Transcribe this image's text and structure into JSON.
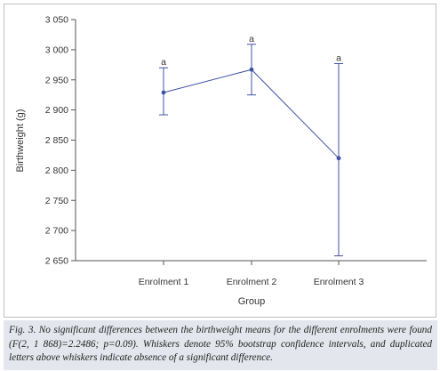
{
  "chart_data": {
    "type": "line",
    "categories": [
      "Enrolment 1",
      "Enrolment 2",
      "Enrolment 3"
    ],
    "series": [
      {
        "values": [
          2929,
          2967,
          2820
        ],
        "ci_lower": [
          2892,
          2925,
          2658
        ],
        "ci_upper": [
          2970,
          3009,
          2977
        ]
      }
    ],
    "letters": [
      "a",
      "a",
      "a"
    ],
    "xlabel": "Group",
    "ylabel": "Birthweight (g)",
    "ylim": [
      2650,
      3050
    ],
    "yticks": [
      2650,
      2700,
      2750,
      2800,
      2850,
      2900,
      2950,
      3000,
      3050
    ],
    "ytick_labels": [
      "2 650",
      "2 700",
      "2 750",
      "2 800",
      "2 850",
      "2 900",
      "2 950",
      "3 000",
      "3 050"
    ],
    "grid": false,
    "line_color": "#3f51a5"
  },
  "caption": "Fig. 3. No significant differences between the birthweight means for the different enrolments were found (F(2, 1 868)=2.2486; p=0.09). Whiskers denote 95% bootstrap confidence intervals, and duplicated letters above whiskers indicate absence of a significant difference."
}
